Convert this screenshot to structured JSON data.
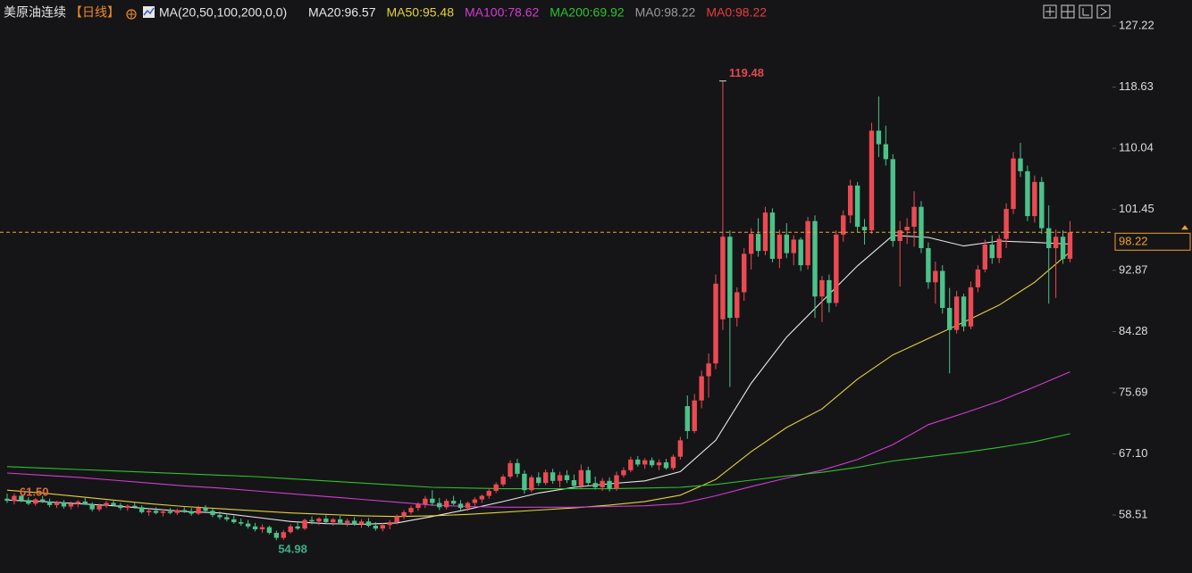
{
  "header": {
    "title": "美原油连续",
    "period": "【日线】",
    "indicator": "MA(20,50,100,200,0,0)",
    "extra": [
      {
        "text": "MA0:98.22",
        "color": "#9a9a9a"
      },
      {
        "text": "MA0:98.22",
        "color": "#ec3b3b"
      }
    ]
  },
  "chart_data": {
    "type": "candlestick",
    "up_color": "#ec4a53",
    "down_color": "#4cc28a",
    "grid": false,
    "ylim": [
      50.36,
      128.1
    ],
    "yticks": [
      127.22,
      118.63,
      110.04,
      101.45,
      92.87,
      84.28,
      75.69,
      {
        "value": 67.1,
        "label": "67.10"
      },
      58.51
    ],
    "last_price": 98.22,
    "last_price_color": "#f0a030",
    "ohlc": [
      [
        60.8,
        61.5,
        60.2,
        60.5
      ],
      [
        60.5,
        61.5,
        60.0,
        61.2
      ],
      [
        61.2,
        61.3,
        60.3,
        60.6
      ],
      [
        60.6,
        61.0,
        59.9,
        60.1
      ],
      [
        60.1,
        60.9,
        59.8,
        60.7
      ],
      [
        60.7,
        61.2,
        60.2,
        60.4
      ],
      [
        60.4,
        60.8,
        59.6,
        59.9
      ],
      [
        59.9,
        60.5,
        59.5,
        60.3
      ],
      [
        60.3,
        60.6,
        59.4,
        59.7
      ],
      [
        59.7,
        60.4,
        59.3,
        60.1
      ],
      [
        60.1,
        60.6,
        59.6,
        60.4
      ],
      [
        60.4,
        60.9,
        59.9,
        60.0
      ],
      [
        60.0,
        60.3,
        59.0,
        59.3
      ],
      [
        59.3,
        60.1,
        59.0,
        59.8
      ],
      [
        59.8,
        60.5,
        59.5,
        60.2
      ],
      [
        60.2,
        60.6,
        59.7,
        59.9
      ],
      [
        59.9,
        60.2,
        59.2,
        59.5
      ],
      [
        59.5,
        60.0,
        59.1,
        59.8
      ],
      [
        59.8,
        60.3,
        59.4,
        59.6
      ],
      [
        59.6,
        59.9,
        58.7,
        58.9
      ],
      [
        58.9,
        59.4,
        58.4,
        59.1
      ],
      [
        59.1,
        59.6,
        58.6,
        58.8
      ],
      [
        58.8,
        59.3,
        58.3,
        59.0
      ],
      [
        59.0,
        59.5,
        58.6,
        58.8
      ],
      [
        58.8,
        59.4,
        58.5,
        59.2
      ],
      [
        59.2,
        59.6,
        58.8,
        59.0
      ],
      [
        59.0,
        59.5,
        58.4,
        58.7
      ],
      [
        58.7,
        59.8,
        58.5,
        59.5
      ],
      [
        59.5,
        59.9,
        58.9,
        59.1
      ],
      [
        59.1,
        59.4,
        58.2,
        58.5
      ],
      [
        58.5,
        59.0,
        57.9,
        58.2
      ],
      [
        58.2,
        58.7,
        57.6,
        57.9
      ],
      [
        57.9,
        58.4,
        57.3,
        57.5
      ],
      [
        57.5,
        58.0,
        57.0,
        57.3
      ],
      [
        57.3,
        57.8,
        56.6,
        56.9
      ],
      [
        56.9,
        57.4,
        56.2,
        56.5
      ],
      [
        56.5,
        57.2,
        56.0,
        56.8
      ],
      [
        56.8,
        57.0,
        55.8,
        56.0
      ],
      [
        56.0,
        56.3,
        54.98,
        55.3
      ],
      [
        55.3,
        56.4,
        55.0,
        56.1
      ],
      [
        56.1,
        57.2,
        55.9,
        56.9
      ],
      [
        56.9,
        57.6,
        56.4,
        56.6
      ],
      [
        56.6,
        58.0,
        56.4,
        57.8
      ],
      [
        57.8,
        58.3,
        57.2,
        57.6
      ],
      [
        57.6,
        58.2,
        57.1,
        58.0
      ],
      [
        58.0,
        58.5,
        57.3,
        57.5
      ],
      [
        57.5,
        58.1,
        57.0,
        57.9
      ],
      [
        57.9,
        58.4,
        57.2,
        57.4
      ],
      [
        57.4,
        58.0,
        56.9,
        57.7
      ],
      [
        57.7,
        58.2,
        57.0,
        57.2
      ],
      [
        57.2,
        57.9,
        56.7,
        57.6
      ],
      [
        57.6,
        58.1,
        56.8,
        57.0
      ],
      [
        57.0,
        57.5,
        56.3,
        56.6
      ],
      [
        56.6,
        57.4,
        56.2,
        57.1
      ],
      [
        57.1,
        57.8,
        56.5,
        57.5
      ],
      [
        57.5,
        58.6,
        57.2,
        58.3
      ],
      [
        58.3,
        59.2,
        57.9,
        58.9
      ],
      [
        58.9,
        59.8,
        58.6,
        59.5
      ],
      [
        59.5,
        60.3,
        59.1,
        60.0
      ],
      [
        60.0,
        61.2,
        59.5,
        60.8
      ],
      [
        60.8,
        62.0,
        59.8,
        60.2
      ],
      [
        60.2,
        60.9,
        59.2,
        59.6
      ],
      [
        59.6,
        60.8,
        59.3,
        60.5
      ],
      [
        60.5,
        61.2,
        59.9,
        60.1
      ],
      [
        60.1,
        60.6,
        59.2,
        59.5
      ],
      [
        59.5,
        60.4,
        59.1,
        60.2
      ],
      [
        60.2,
        61.0,
        59.8,
        60.7
      ],
      [
        60.7,
        61.4,
        60.2,
        61.2
      ],
      [
        61.2,
        62.3,
        60.8,
        61.9
      ],
      [
        61.9,
        63.1,
        61.6,
        62.8
      ],
      [
        62.8,
        64.2,
        62.5,
        63.9
      ],
      [
        63.9,
        66.2,
        63.6,
        65.8
      ],
      [
        65.8,
        66.4,
        63.8,
        64.3
      ],
      [
        64.3,
        64.8,
        61.5,
        62.0
      ],
      [
        62.0,
        64.1,
        61.7,
        63.8
      ],
      [
        63.8,
        64.5,
        62.6,
        63.0
      ],
      [
        63.0,
        64.9,
        62.7,
        64.5
      ],
      [
        64.5,
        65.0,
        62.9,
        63.3
      ],
      [
        63.3,
        64.6,
        62.4,
        64.1
      ],
      [
        64.1,
        64.8,
        63.0,
        63.4
      ],
      [
        63.4,
        64.2,
        62.2,
        62.6
      ],
      [
        62.6,
        65.6,
        62.3,
        64.8
      ],
      [
        64.8,
        65.3,
        62.6,
        63.0
      ],
      [
        63.0,
        63.9,
        62.1,
        62.4
      ],
      [
        62.4,
        63.7,
        61.9,
        63.3
      ],
      [
        63.3,
        63.8,
        61.8,
        62.2
      ],
      [
        62.2,
        64.6,
        61.9,
        64.1
      ],
      [
        64.1,
        65.2,
        63.8,
        64.8
      ],
      [
        64.8,
        66.7,
        64.5,
        66.3
      ],
      [
        66.3,
        66.8,
        65.3,
        65.6
      ],
      [
        65.6,
        66.5,
        65.0,
        66.2
      ],
      [
        66.2,
        66.6,
        65.2,
        65.5
      ],
      [
        65.5,
        66.3,
        64.8,
        65.9
      ],
      [
        65.9,
        66.4,
        64.9,
        65.1
      ],
      [
        65.1,
        67.0,
        64.8,
        66.7
      ],
      [
        66.7,
        69.5,
        66.3,
        69.0
      ],
      [
        73.8,
        75.3,
        69.2,
        70.3
      ],
      [
        70.3,
        75.5,
        70.0,
        74.6
      ],
      [
        74.6,
        78.8,
        73.5,
        78.0
      ],
      [
        78.0,
        81.2,
        75.0,
        79.8
      ],
      [
        79.8,
        92.3,
        79.0,
        91.0
      ],
      [
        86.0,
        119.48,
        84.5,
        97.6
      ],
      [
        97.6,
        98.5,
        76.5,
        86.2
      ],
      [
        86.2,
        90.5,
        85.0,
        89.8
      ],
      [
        89.8,
        96.0,
        88.6,
        95.2
      ],
      [
        95.2,
        98.8,
        93.0,
        98.0
      ],
      [
        98.0,
        100.2,
        94.8,
        95.6
      ],
      [
        95.6,
        101.8,
        95.0,
        101.0
      ],
      [
        101.0,
        101.6,
        94.0,
        94.5
      ],
      [
        94.5,
        98.6,
        93.2,
        97.9
      ],
      [
        97.9,
        99.5,
        94.6,
        95.3
      ],
      [
        95.3,
        97.8,
        93.6,
        97.2
      ],
      [
        97.2,
        97.5,
        92.8,
        93.6
      ],
      [
        93.6,
        100.4,
        93.0,
        99.8
      ],
      [
        99.8,
        100.6,
        86.2,
        89.2
      ],
      [
        89.2,
        92.1,
        85.6,
        91.5
      ],
      [
        91.5,
        92.3,
        87.0,
        88.3
      ],
      [
        88.3,
        98.5,
        87.8,
        97.9
      ],
      [
        97.9,
        101.3,
        96.9,
        100.6
      ],
      [
        100.6,
        105.6,
        99.5,
        104.8
      ],
      [
        104.8,
        105.3,
        98.2,
        99.0
      ],
      [
        99.0,
        100.1,
        96.5,
        98.5
      ],
      [
        98.5,
        113.6,
        98.0,
        112.5
      ],
      [
        112.5,
        117.3,
        108.8,
        110.6
      ],
      [
        110.6,
        113.2,
        107.6,
        108.5
      ],
      [
        108.5,
        109.2,
        96.2,
        97.0
      ],
      [
        97.0,
        99.8,
        90.6,
        98.5
      ],
      [
        98.5,
        100.2,
        96.6,
        99.0
      ],
      [
        99.0,
        104.0,
        96.2,
        101.8
      ],
      [
        101.8,
        102.6,
        95.3,
        96.0
      ],
      [
        96.0,
        96.8,
        90.3,
        91.2
      ],
      [
        91.2,
        94.1,
        88.2,
        92.8
      ],
      [
        92.8,
        93.6,
        86.8,
        87.6
      ],
      [
        87.6,
        90.4,
        78.4,
        84.5
      ],
      [
        84.5,
        90.0,
        84.0,
        89.2
      ],
      [
        89.2,
        89.6,
        84.3,
        85.0
      ],
      [
        85.0,
        91.3,
        84.6,
        90.5
      ],
      [
        90.5,
        93.6,
        89.8,
        93.0
      ],
      [
        93.0,
        97.2,
        92.6,
        96.5
      ],
      [
        96.5,
        97.8,
        93.8,
        94.6
      ],
      [
        94.6,
        97.9,
        93.9,
        97.3
      ],
      [
        97.3,
        102.3,
        96.0,
        101.5
      ],
      [
        101.5,
        109.5,
        100.8,
        108.6
      ],
      [
        108.6,
        110.8,
        106.0,
        106.8
      ],
      [
        106.8,
        107.6,
        99.8,
        100.5
      ],
      [
        100.5,
        106.2,
        99.6,
        105.3
      ],
      [
        105.3,
        106.0,
        98.0,
        98.8
      ],
      [
        98.8,
        102.0,
        88.2,
        96.0
      ],
      [
        96.0,
        98.6,
        89.0,
        97.6
      ],
      [
        97.6,
        98.5,
        93.8,
        94.5
      ],
      [
        94.5,
        99.8,
        94.0,
        98.22
      ]
    ],
    "series": [
      {
        "label": "MA20:96.57",
        "color": "#e8e8e8",
        "x": [
          0,
          5,
          10,
          15,
          20,
          25,
          30,
          35,
          40,
          45,
          50,
          55,
          60,
          65,
          70,
          75,
          80,
          85,
          90,
          95,
          100,
          105,
          110,
          115,
          120,
          125,
          130,
          135,
          140,
          145,
          150
        ],
        "values": [
          60.6,
          60.4,
          60.1,
          59.8,
          59.4,
          59.0,
          58.8,
          58.2,
          57.6,
          57.3,
          57.2,
          57.4,
          58.3,
          59.3,
          60.4,
          61.6,
          62.4,
          62.9,
          63.3,
          64.6,
          69.0,
          77.0,
          83.5,
          88.5,
          93.5,
          97.8,
          97.5,
          96.3,
          97.0,
          96.8,
          96.57
        ]
      },
      {
        "label": "MA50:95.48",
        "color": "#e3d23a",
        "x": [
          0,
          5,
          10,
          15,
          20,
          25,
          30,
          35,
          40,
          45,
          50,
          55,
          60,
          65,
          70,
          75,
          80,
          85,
          90,
          95,
          100,
          105,
          110,
          115,
          120,
          125,
          130,
          135,
          140,
          145,
          150
        ],
        "values": [
          62.0,
          61.6,
          61.1,
          60.6,
          60.1,
          59.7,
          59.4,
          59.1,
          58.8,
          58.6,
          58.4,
          58.3,
          58.4,
          58.6,
          58.9,
          59.2,
          59.5,
          59.9,
          60.4,
          61.3,
          63.5,
          67.4,
          70.8,
          73.4,
          77.6,
          81.0,
          83.3,
          85.6,
          88.0,
          91.2,
          95.48
        ]
      },
      {
        "label": "MA100:78.62",
        "color": "#d23cd2",
        "x": [
          0,
          5,
          10,
          15,
          20,
          25,
          30,
          35,
          40,
          45,
          50,
          55,
          60,
          65,
          70,
          75,
          80,
          85,
          90,
          95,
          100,
          105,
          110,
          115,
          120,
          125,
          130,
          135,
          140,
          145,
          150
        ],
        "values": [
          64.4,
          64.1,
          63.8,
          63.4,
          63.0,
          62.6,
          62.3,
          61.9,
          61.5,
          61.1,
          60.7,
          60.3,
          59.9,
          59.7,
          59.6,
          59.6,
          59.6,
          59.7,
          59.8,
          60.1,
          61.2,
          62.5,
          63.7,
          64.8,
          66.3,
          68.4,
          71.2,
          72.8,
          74.5,
          76.5,
          78.62
        ]
      },
      {
        "label": "MA200:69.92",
        "color": "#2bc42b",
        "x": [
          0,
          5,
          10,
          15,
          20,
          25,
          30,
          35,
          40,
          45,
          50,
          55,
          60,
          65,
          70,
          75,
          80,
          85,
          90,
          95,
          100,
          105,
          110,
          115,
          120,
          125,
          130,
          135,
          140,
          145,
          150
        ],
        "values": [
          65.3,
          65.1,
          64.9,
          64.7,
          64.5,
          64.3,
          64.1,
          63.9,
          63.6,
          63.3,
          63.0,
          62.7,
          62.4,
          62.3,
          62.2,
          62.2,
          62.2,
          62.2,
          62.3,
          62.4,
          62.8,
          63.4,
          64.0,
          64.5,
          65.2,
          66.1,
          66.7,
          67.3,
          68.0,
          68.8,
          69.92
        ]
      }
    ],
    "annotations": [
      {
        "index": 101,
        "value": 119.48,
        "color": "#e04850",
        "side": "top"
      },
      {
        "index": 38,
        "value": 54.98,
        "color": "#3fae85",
        "side": "bottom"
      },
      {
        "index": 1,
        "value": 61.5,
        "label": "61.50",
        "color": "#e06a3c",
        "side": "top"
      }
    ]
  }
}
